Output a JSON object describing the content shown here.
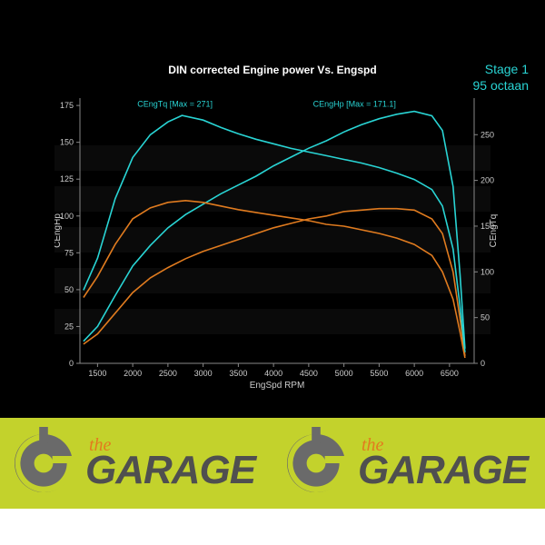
{
  "chart": {
    "type": "line",
    "title": "DIN corrected Engine power Vs. Engspd",
    "title_fontsize": 12,
    "title_color": "#ffffff",
    "background_color": "#000000",
    "stage_label_line1": "Stage 1",
    "stage_label_line2": "95 octaan",
    "stage_label_color": "#29d4d4",
    "x": {
      "label": "EngSpd RPM",
      "min": 1250,
      "max": 6850,
      "ticks": [
        1500,
        2000,
        2500,
        3000,
        3500,
        4000,
        4500,
        5000,
        5500,
        6000,
        6500
      ],
      "label_fontsize": 9
    },
    "y_left": {
      "label": "CEngHp",
      "min": 0,
      "max": 180,
      "ticks": [
        0,
        25,
        50,
        75,
        100,
        125,
        150,
        175
      ],
      "label_fontsize": 9
    },
    "y_right": {
      "label": "CEngTq",
      "min": 0,
      "max": 290,
      "ticks": [
        0,
        50,
        100,
        150,
        200,
        250
      ],
      "label_fontsize": 9
    },
    "axis_color": "#888888",
    "grid_color": "#333333",
    "tick_label_color": "#cccccc",
    "annotations": [
      {
        "text": "CEngTq [Max = 271]",
        "x_rpm": 2600,
        "y_left_val": 174,
        "color": "#29d4d4"
      },
      {
        "text": "CEngHp [Max = 171.1]",
        "x_rpm": 5150,
        "y_left_val": 174,
        "color": "#29d4d4"
      }
    ],
    "series": [
      {
        "name": "hp_tuned",
        "axis": "left",
        "color": "#29d4d4",
        "points": [
          [
            1300,
            15
          ],
          [
            1500,
            25
          ],
          [
            1750,
            46
          ],
          [
            2000,
            66
          ],
          [
            2250,
            80
          ],
          [
            2500,
            92
          ],
          [
            2750,
            101
          ],
          [
            3000,
            108
          ],
          [
            3250,
            115
          ],
          [
            3500,
            121
          ],
          [
            3750,
            127
          ],
          [
            4000,
            134
          ],
          [
            4250,
            140
          ],
          [
            4500,
            146
          ],
          [
            4750,
            151
          ],
          [
            5000,
            157
          ],
          [
            5250,
            162
          ],
          [
            5500,
            166
          ],
          [
            5750,
            169
          ],
          [
            6000,
            171
          ],
          [
            6250,
            168
          ],
          [
            6400,
            158
          ],
          [
            6550,
            120
          ],
          [
            6650,
            60
          ],
          [
            6720,
            10
          ]
        ]
      },
      {
        "name": "hp_stock",
        "axis": "left",
        "color": "#e07b1f",
        "points": [
          [
            1300,
            13
          ],
          [
            1500,
            20
          ],
          [
            1750,
            34
          ],
          [
            2000,
            48
          ],
          [
            2250,
            58
          ],
          [
            2500,
            65
          ],
          [
            2750,
            71
          ],
          [
            3000,
            76
          ],
          [
            3250,
            80
          ],
          [
            3500,
            84
          ],
          [
            3750,
            88
          ],
          [
            4000,
            92
          ],
          [
            4250,
            95
          ],
          [
            4500,
            98
          ],
          [
            4750,
            100
          ],
          [
            5000,
            103
          ],
          [
            5250,
            104
          ],
          [
            5500,
            105
          ],
          [
            5750,
            105
          ],
          [
            6000,
            104
          ],
          [
            6250,
            98
          ],
          [
            6400,
            88
          ],
          [
            6550,
            62
          ],
          [
            6650,
            30
          ],
          [
            6720,
            5
          ]
        ]
      },
      {
        "name": "tq_tuned",
        "axis": "right",
        "color": "#29d4d4",
        "points": [
          [
            1300,
            80
          ],
          [
            1500,
            115
          ],
          [
            1750,
            180
          ],
          [
            2000,
            225
          ],
          [
            2250,
            250
          ],
          [
            2500,
            264
          ],
          [
            2700,
            271
          ],
          [
            3000,
            266
          ],
          [
            3250,
            258
          ],
          [
            3500,
            251
          ],
          [
            3750,
            245
          ],
          [
            4000,
            240
          ],
          [
            4250,
            235
          ],
          [
            4500,
            231
          ],
          [
            4750,
            227
          ],
          [
            5000,
            223
          ],
          [
            5250,
            219
          ],
          [
            5500,
            214
          ],
          [
            5750,
            208
          ],
          [
            6000,
            201
          ],
          [
            6250,
            190
          ],
          [
            6400,
            172
          ],
          [
            6550,
            125
          ],
          [
            6650,
            62
          ],
          [
            6720,
            12
          ]
        ]
      },
      {
        "name": "tq_stock",
        "axis": "right",
        "color": "#e07b1f",
        "points": [
          [
            1300,
            72
          ],
          [
            1500,
            95
          ],
          [
            1750,
            130
          ],
          [
            2000,
            158
          ],
          [
            2250,
            170
          ],
          [
            2500,
            176
          ],
          [
            2750,
            178
          ],
          [
            3000,
            176
          ],
          [
            3250,
            172
          ],
          [
            3500,
            168
          ],
          [
            3750,
            165
          ],
          [
            4000,
            162
          ],
          [
            4250,
            159
          ],
          [
            4500,
            156
          ],
          [
            4750,
            152
          ],
          [
            5000,
            150
          ],
          [
            5250,
            146
          ],
          [
            5500,
            142
          ],
          [
            5750,
            137
          ],
          [
            6000,
            130
          ],
          [
            6250,
            118
          ],
          [
            6400,
            100
          ],
          [
            6550,
            70
          ],
          [
            6650,
            34
          ],
          [
            6720,
            6
          ]
        ]
      }
    ]
  },
  "logo": {
    "bar_bg": "#c3d22c",
    "the_text": "the",
    "the_color": "#e37a1e",
    "garage_text": "GARAGE",
    "garage_color": "#4f4f4f",
    "icon_bg": "#6a6a6a",
    "icon_ring": "#c3d22c"
  }
}
